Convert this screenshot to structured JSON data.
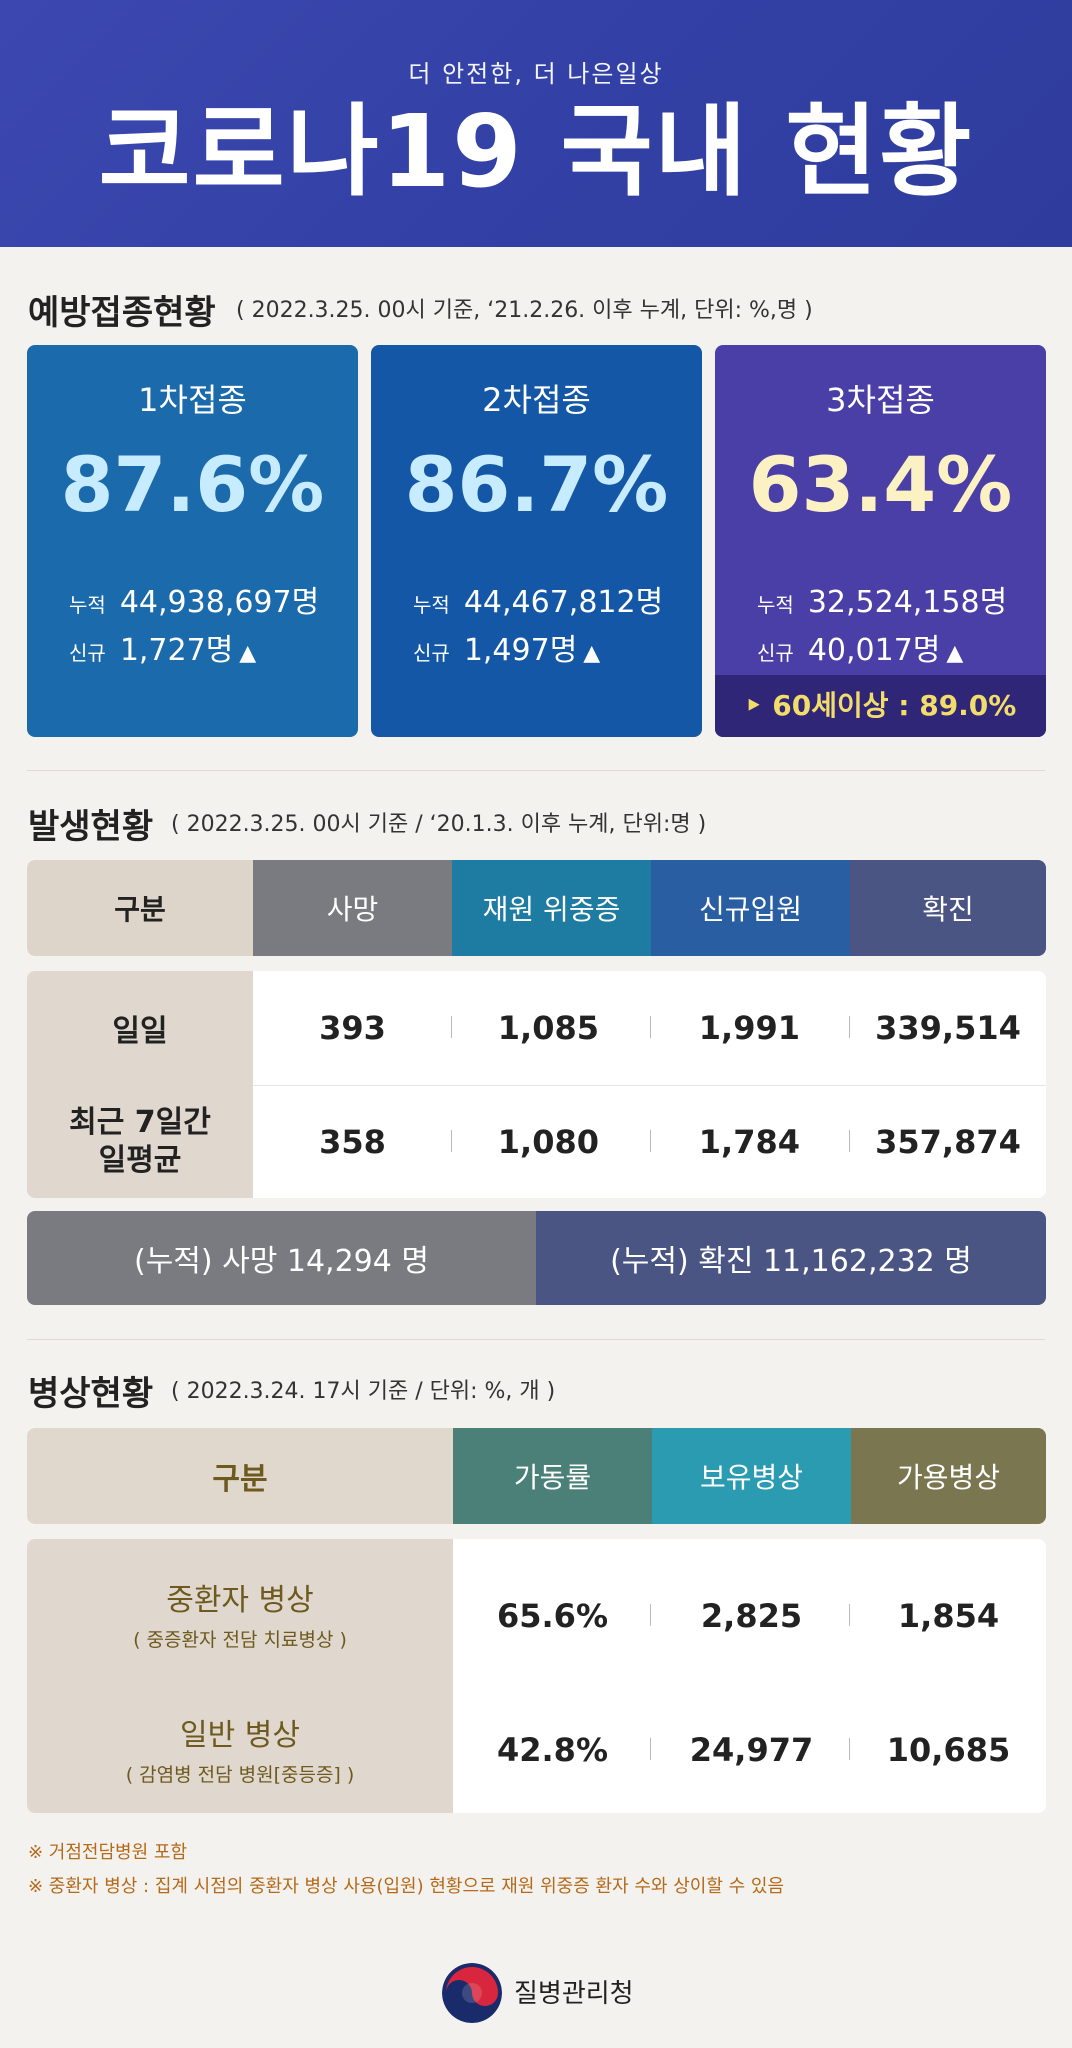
{
  "header": {
    "subtitle": "더 안전한, 더 나은일상",
    "title": "코로나19 국내 현황"
  },
  "vaccination": {
    "title": "예방접종현황",
    "note": "( 2022.3.25. 00시 기준, ‘21.2.26. 이후 누계, 단위: %,명 )",
    "cards": [
      {
        "label": "1차접종",
        "rate": "87.6%",
        "cum_key": "누적",
        "cum": "44,938,697명",
        "new_key": "신규",
        "new": "1,727명",
        "arrow": "▲"
      },
      {
        "label": "2차접종",
        "rate": "86.7%",
        "cum_key": "누적",
        "cum": "44,467,812명",
        "new_key": "신규",
        "new": "1,497명",
        "arrow": "▲"
      },
      {
        "label": "3차접종",
        "rate": "63.4%",
        "cum_key": "누적",
        "cum": "32,524,158명",
        "new_key": "신규",
        "new": "40,017명",
        "arrow": "▲"
      }
    ],
    "elderly": "‣ 60세이상 : 89.0%"
  },
  "occurrence": {
    "title": "발생현황",
    "note": "( 2022.3.25. 00시 기준 / ‘20.1.3. 이후 누계, 단위:명 )",
    "headers": [
      "구분",
      "사망",
      "재원 위중증",
      "신규입원",
      "확진"
    ],
    "header_colors": [
      "#ddd5ca",
      "#7a7b80",
      "#1e7ba1",
      "#2a5ea3",
      "#4b5583"
    ],
    "rows": [
      {
        "label": "일일",
        "values": [
          "393",
          "1,085",
          "1,991",
          "339,514"
        ]
      },
      {
        "label": "최근 7일간\n일평균",
        "values": [
          "358",
          "1,080",
          "1,784",
          "357,874"
        ]
      }
    ],
    "cumulative_death": "(누적) 사망   14,294 명",
    "cumulative_confirmed": "(누적) 확진   11,162,232 명"
  },
  "beds": {
    "title": "병상현황",
    "note": "( 2022.3.24. 17시 기준 / 단위: %, 개 )",
    "headers": [
      "구분",
      "가동률",
      "보유병상",
      "가용병상"
    ],
    "header_colors": [
      "#e0d8cc",
      "#4b8079",
      "#2a9bb0",
      "#7a7650"
    ],
    "rows": [
      {
        "label": "중환자 병상",
        "sub": "( 중증환자 전담 치료병상 )",
        "values": [
          "65.6%",
          "2,825",
          "1,854"
        ]
      },
      {
        "label": "일반 병상",
        "sub": "( 감염병 전담 병원[중등증] )",
        "values": [
          "42.8%",
          "24,977",
          "10,685"
        ]
      }
    ]
  },
  "footnotes": [
    "※ 거점전담병원 포함",
    "※ 중환자 병상 : 집계 시점의 중환자 병상 사용(입원) 현황으로 재원 위중증 환자 수와 상이할 수 있음"
  ],
  "agency": "질병관리청"
}
